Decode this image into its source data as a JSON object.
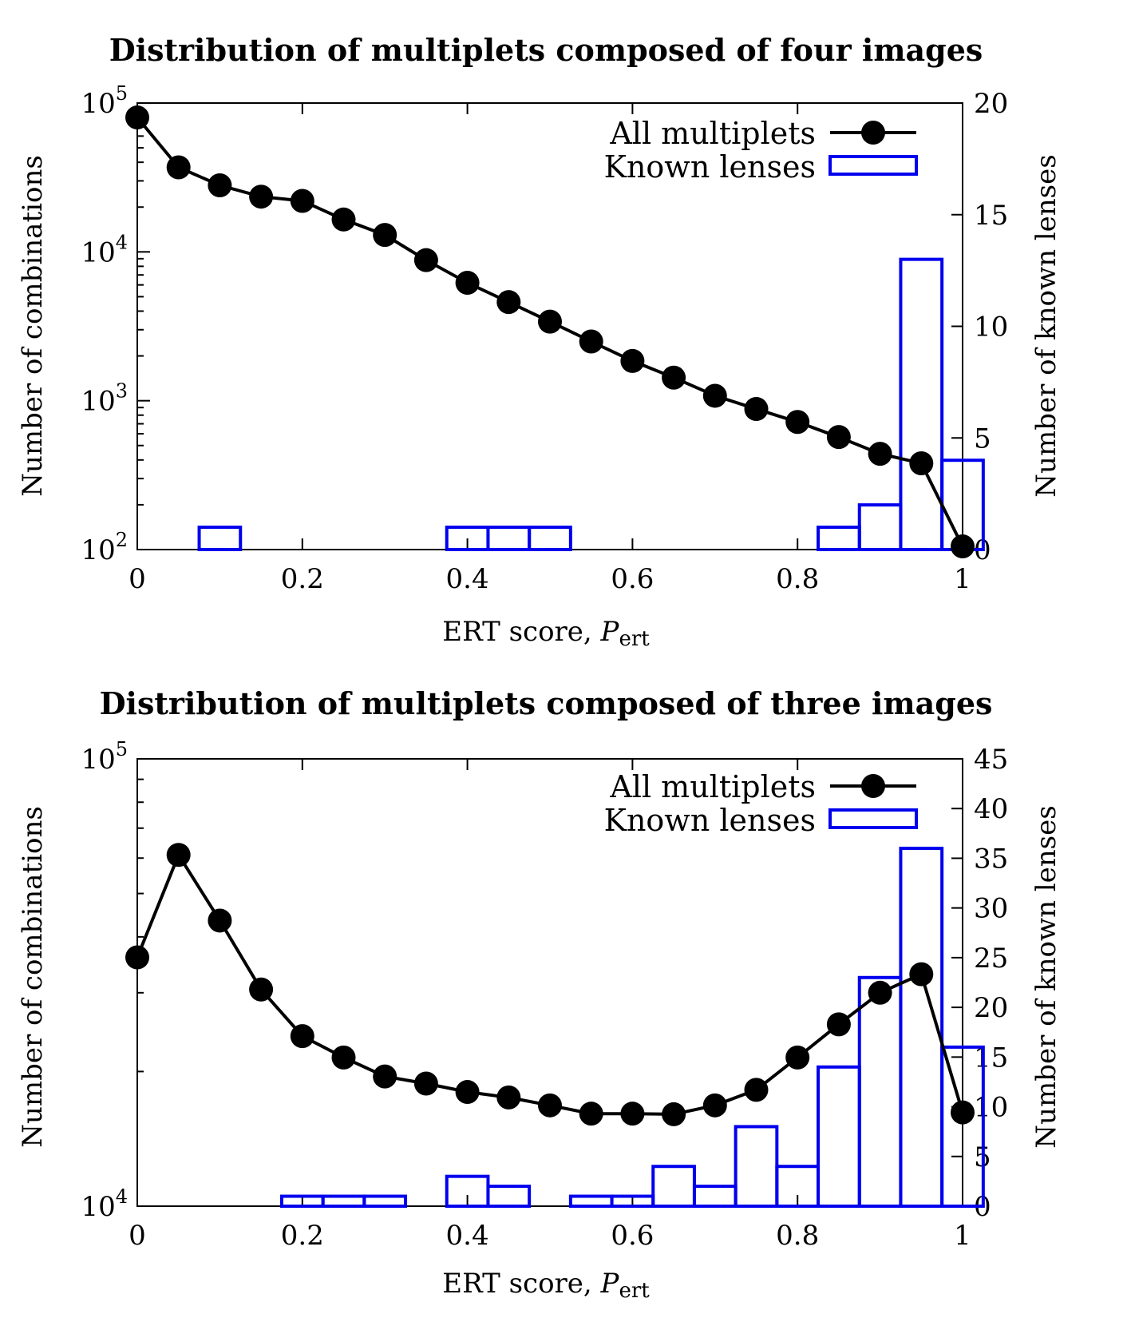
{
  "chart_data": [
    {
      "type": "line+bar",
      "title": "Distribution of multiplets composed of four images",
      "xlabel": "ERT score,",
      "xlabel_var": "P",
      "xlabel_sub": "ert",
      "ylabel_left": "Number of combinations",
      "ylabel_right": "Number of known lenses",
      "xlim": [
        0,
        1
      ],
      "ylim_left": [
        100,
        100000
      ],
      "ylim_left_scale": "log",
      "ylim_right": [
        0,
        20
      ],
      "xticks": [
        0,
        0.2,
        0.4,
        0.6,
        0.8,
        1
      ],
      "xtick_labels": [
        "0",
        "0.2",
        "0.4",
        "0.6",
        "0.8",
        "1"
      ],
      "yticks_left": [
        {
          "base": "10",
          "exp": "2",
          "value": 100
        },
        {
          "base": "10",
          "exp": "3",
          "value": 1000
        },
        {
          "base": "10",
          "exp": "4",
          "value": 10000
        },
        {
          "base": "10",
          "exp": "5",
          "value": 100000
        }
      ],
      "yticks_right": [
        0,
        5,
        10,
        15,
        20
      ],
      "ytick_labels_right": [
        "0",
        "5",
        "10",
        "15",
        "20"
      ],
      "legend": {
        "position": "top-right",
        "line_label": "All multiplets",
        "bar_label": "Known lenses"
      },
      "line_color": "#000000",
      "bar_color": "#0000ee",
      "series": [
        {
          "name": "All multiplets",
          "x": [
            0,
            0.05,
            0.1,
            0.15,
            0.2,
            0.25,
            0.3,
            0.35,
            0.4,
            0.45,
            0.5,
            0.55,
            0.6,
            0.65,
            0.7,
            0.75,
            0.8,
            0.85,
            0.9,
            0.95,
            1.0
          ],
          "values": [
            80000,
            37000,
            28000,
            23500,
            22000,
            16500,
            13000,
            8800,
            6200,
            4600,
            3400,
            2500,
            1850,
            1430,
            1080,
            880,
            720,
            570,
            440,
            380,
            105
          ]
        },
        {
          "name": "Known lenses",
          "x": [
            0.1,
            0.4,
            0.45,
            0.5,
            0.85,
            0.9,
            0.95,
            1.0
          ],
          "values": [
            1,
            1,
            1,
            1,
            1,
            2,
            13,
            4
          ]
        }
      ]
    },
    {
      "type": "line+bar",
      "title": "Distribution of multiplets composed of three images",
      "xlabel": "ERT score,",
      "xlabel_var": "P",
      "xlabel_sub": "ert",
      "ylabel_left": "Number of combinations",
      "ylabel_right": "Number of known lenses",
      "xlim": [
        0,
        1
      ],
      "ylim_left": [
        10000,
        100000
      ],
      "ylim_left_scale": "log",
      "ylim_right": [
        0,
        45
      ],
      "xticks": [
        0,
        0.2,
        0.4,
        0.6,
        0.8,
        1
      ],
      "xtick_labels": [
        "0",
        "0.2",
        "0.4",
        "0.6",
        "0.8",
        "1"
      ],
      "yticks_left": [
        {
          "base": "10",
          "exp": "4",
          "value": 10000
        },
        {
          "base": "10",
          "exp": "5",
          "value": 100000
        }
      ],
      "yticks_right": [
        0,
        5,
        10,
        15,
        20,
        25,
        30,
        35,
        40,
        45
      ],
      "ytick_labels_right": [
        "0",
        "5",
        "10",
        "15",
        "20",
        "25",
        "30",
        "35",
        "40",
        "45"
      ],
      "legend": {
        "position": "top-right",
        "line_label": "All multiplets",
        "bar_label": "Known lenses"
      },
      "line_color": "#000000",
      "bar_color": "#0000ee",
      "series": [
        {
          "name": "All multiplets",
          "x": [
            0,
            0.05,
            0.1,
            0.15,
            0.2,
            0.25,
            0.3,
            0.35,
            0.4,
            0.45,
            0.5,
            0.55,
            0.6,
            0.65,
            0.7,
            0.75,
            0.8,
            0.85,
            0.9,
            0.95,
            1.0
          ],
          "values": [
            36000,
            61000,
            43500,
            30500,
            24000,
            21500,
            19500,
            18800,
            18000,
            17500,
            16800,
            16100,
            16100,
            16050,
            16800,
            18200,
            21500,
            25500,
            30000,
            33000,
            16200
          ]
        },
        {
          "name": "Known lenses",
          "x": [
            0.2,
            0.25,
            0.3,
            0.4,
            0.45,
            0.55,
            0.6,
            0.65,
            0.7,
            0.75,
            0.8,
            0.85,
            0.9,
            0.95,
            1.0
          ],
          "values": [
            1,
            1,
            1,
            3,
            2,
            1,
            1,
            4,
            2,
            8,
            4,
            14,
            23,
            36,
            16
          ]
        }
      ]
    }
  ]
}
